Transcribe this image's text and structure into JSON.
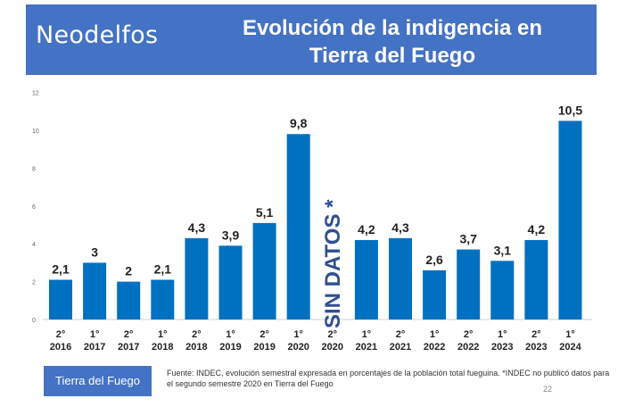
{
  "header": {
    "brand": "Neodelfos",
    "title_line1": "Evolución de la indigencia en",
    "title_line2": "Tierra del Fuego"
  },
  "footer": {
    "tag": "Tierra del Fuego",
    "source": "Fuente: INDEC, evolución semestral expresada en porcentajes de la población total fueguina. *INDEC no publicó datos para el segundo semestre 2020 en Tierra del Fuego",
    "page_number": "22"
  },
  "colors": {
    "bar": "#0070c0",
    "banner": "#4472c4",
    "no_data_text": "#2f4f8f"
  },
  "chart_data": {
    "type": "bar",
    "title": "Evolución de la indigencia en Tierra del Fuego",
    "xlabel": "",
    "ylabel": "",
    "ylim": [
      0,
      12
    ],
    "yticks": [
      0,
      2,
      4,
      6,
      8,
      10,
      12
    ],
    "grid": false,
    "categories": [
      {
        "sem": "2°",
        "year": "2016"
      },
      {
        "sem": "1°",
        "year": "2017"
      },
      {
        "sem": "2°",
        "year": "2017"
      },
      {
        "sem": "1°",
        "year": "2018"
      },
      {
        "sem": "2°",
        "year": "2018"
      },
      {
        "sem": "1°",
        "year": "2019"
      },
      {
        "sem": "2°",
        "year": "2019"
      },
      {
        "sem": "1°",
        "year": "2020"
      },
      {
        "sem": "2°",
        "year": "2020"
      },
      {
        "sem": "1°",
        "year": "2021"
      },
      {
        "sem": "2°",
        "year": "2021"
      },
      {
        "sem": "1°",
        "year": "2022"
      },
      {
        "sem": "2°",
        "year": "2022"
      },
      {
        "sem": "1°",
        "year": "2023"
      },
      {
        "sem": "2°",
        "year": "2023"
      },
      {
        "sem": "1°",
        "year": "2024"
      }
    ],
    "values": [
      2.1,
      3,
      2,
      2.1,
      4.3,
      3.9,
      5.1,
      9.8,
      null,
      4.2,
      4.3,
      2.6,
      3.7,
      3.1,
      4.2,
      10.5
    ],
    "labels": [
      "2,1",
      "3",
      "2",
      "2,1",
      "4,3",
      "3,9",
      "5,1",
      "9,8",
      "",
      "4,2",
      "4,3",
      "2,6",
      "3,7",
      "3,1",
      "4,2",
      "10,5"
    ],
    "no_data_label": "SIN DATOS *",
    "no_data_index": 8
  }
}
